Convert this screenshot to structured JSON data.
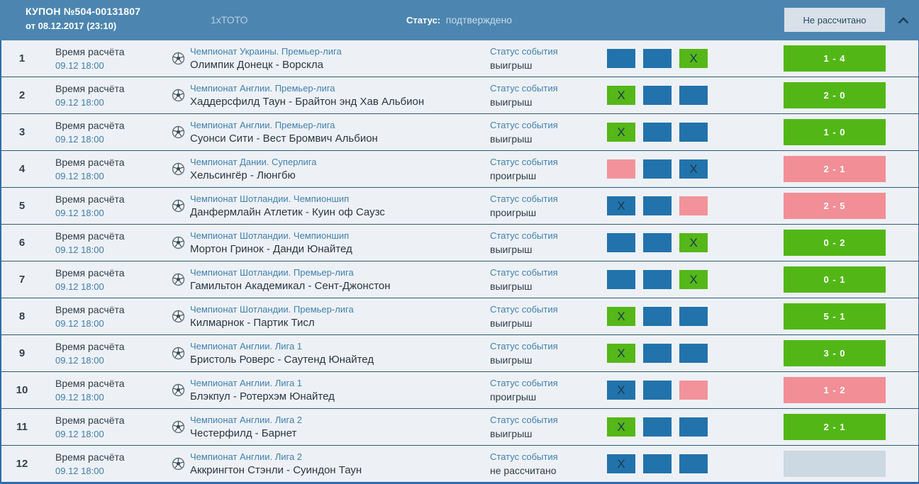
{
  "header": {
    "coupon_title": "КУПОН №504-00131807",
    "coupon_date": "от 08.12.2017 (23:10)",
    "game_type": "1хТОТО",
    "status_label": "Статус:",
    "status_value": "подтверждено",
    "settlement_button": "Не рассчитано"
  },
  "row_labels": {
    "time_label": "Время расчёта",
    "status_label": "Статус события",
    "pick_mark": "X"
  },
  "colors": {
    "header_blue": "#4c86b0",
    "pick_blue": "#2273ab",
    "win_green": "#52b716",
    "loss_pink": "#f28e96",
    "unsettled_gray": "#ccd8e2"
  },
  "rows": [
    {
      "num": "1",
      "time": "09.12 18:00",
      "league": "Чемпионат Украины. Премьер-лига",
      "match": "Олимпик Донецк - Ворскла",
      "status": "выигрыш",
      "picks": [
        {
          "color": "blue",
          "marked": false
        },
        {
          "color": "blue",
          "marked": false
        },
        {
          "color": "green",
          "marked": true
        }
      ],
      "score": "1 - 4",
      "score_state": "win"
    },
    {
      "num": "2",
      "time": "09.12 18:00",
      "league": "Чемпионат Англии. Премьер-лига",
      "match": "Хаддерсфилд Таун - Брайтон энд Хав Альбион",
      "status": "выигрыш",
      "picks": [
        {
          "color": "green",
          "marked": true
        },
        {
          "color": "blue",
          "marked": false
        },
        {
          "color": "blue",
          "marked": false
        }
      ],
      "score": "2 - 0",
      "score_state": "win"
    },
    {
      "num": "3",
      "time": "09.12 18:00",
      "league": "Чемпионат Англии. Премьер-лига",
      "match": "Суонси Сити - Вест Бромвич Альбион",
      "status": "выигрыш",
      "picks": [
        {
          "color": "green",
          "marked": true
        },
        {
          "color": "blue",
          "marked": false
        },
        {
          "color": "blue",
          "marked": false
        }
      ],
      "score": "1 - 0",
      "score_state": "win"
    },
    {
      "num": "4",
      "time": "09.12 18:00",
      "league": "Чемпионат Дании. Суперлига",
      "match": "Хельсингёр - Люнгбю",
      "status": "проигрыш",
      "picks": [
        {
          "color": "pink",
          "marked": false
        },
        {
          "color": "blue",
          "marked": false
        },
        {
          "color": "blue",
          "marked": true
        }
      ],
      "score": "2 - 1",
      "score_state": "loss"
    },
    {
      "num": "5",
      "time": "09.12 18:00",
      "league": "Чемпионат Шотландии. Чемпионшип",
      "match": "Данфермлайн Атлетик - Куин оф Саузс",
      "status": "проигрыш",
      "picks": [
        {
          "color": "blue",
          "marked": true
        },
        {
          "color": "blue",
          "marked": false
        },
        {
          "color": "pink",
          "marked": false
        }
      ],
      "score": "2 - 5",
      "score_state": "loss"
    },
    {
      "num": "6",
      "time": "09.12 18:00",
      "league": "Чемпионат Шотландии. Чемпионшип",
      "match": "Мортон Гринок - Данди Юнайтед",
      "status": "выигрыш",
      "picks": [
        {
          "color": "blue",
          "marked": false
        },
        {
          "color": "blue",
          "marked": false
        },
        {
          "color": "green",
          "marked": true
        }
      ],
      "score": "0 - 2",
      "score_state": "win"
    },
    {
      "num": "7",
      "time": "09.12 18:00",
      "league": "Чемпионат Шотландии. Премьер-лига",
      "match": "Гамильтон Академикал - Сент-Джонстон",
      "status": "выигрыш",
      "picks": [
        {
          "color": "blue",
          "marked": false
        },
        {
          "color": "blue",
          "marked": false
        },
        {
          "color": "green",
          "marked": true
        }
      ],
      "score": "0 - 1",
      "score_state": "win"
    },
    {
      "num": "8",
      "time": "09.12 18:00",
      "league": "Чемпионат Шотландии. Премьер-лига",
      "match": "Килмарнок - Партик Тисл",
      "status": "выигрыш",
      "picks": [
        {
          "color": "green",
          "marked": true
        },
        {
          "color": "blue",
          "marked": false
        },
        {
          "color": "blue",
          "marked": false
        }
      ],
      "score": "5 - 1",
      "score_state": "win"
    },
    {
      "num": "9",
      "time": "09.12 18:00",
      "league": "Чемпионат Англии. Лига 1",
      "match": "Бристоль Роверс - Саутенд Юнайтед",
      "status": "выигрыш",
      "picks": [
        {
          "color": "green",
          "marked": true
        },
        {
          "color": "blue",
          "marked": false
        },
        {
          "color": "blue",
          "marked": false
        }
      ],
      "score": "3 - 0",
      "score_state": "win"
    },
    {
      "num": "10",
      "time": "09.12 18:00",
      "league": "Чемпионат Англии. Лига 1",
      "match": "Блэкпул - Ротерхэм Юнайтед",
      "status": "проигрыш",
      "picks": [
        {
          "color": "blue",
          "marked": true
        },
        {
          "color": "blue",
          "marked": false
        },
        {
          "color": "pink",
          "marked": false
        }
      ],
      "score": "1 - 2",
      "score_state": "loss"
    },
    {
      "num": "11",
      "time": "09.12 18:00",
      "league": "Чемпионат Англии. Лига 2",
      "match": "Честерфилд - Барнет",
      "status": "выигрыш",
      "picks": [
        {
          "color": "green",
          "marked": true
        },
        {
          "color": "blue",
          "marked": false
        },
        {
          "color": "blue",
          "marked": false
        }
      ],
      "score": "2 - 1",
      "score_state": "win"
    },
    {
      "num": "12",
      "time": "09.12 18:00",
      "league": "Чемпионат Англии. Лига 2",
      "match": "Аккрингтон Стэнли - Суиндон Таун",
      "status": "не рассчитано",
      "picks": [
        {
          "color": "blue",
          "marked": true
        },
        {
          "color": "blue",
          "marked": false
        },
        {
          "color": "blue",
          "marked": false
        }
      ],
      "score": "",
      "score_state": "none"
    }
  ]
}
